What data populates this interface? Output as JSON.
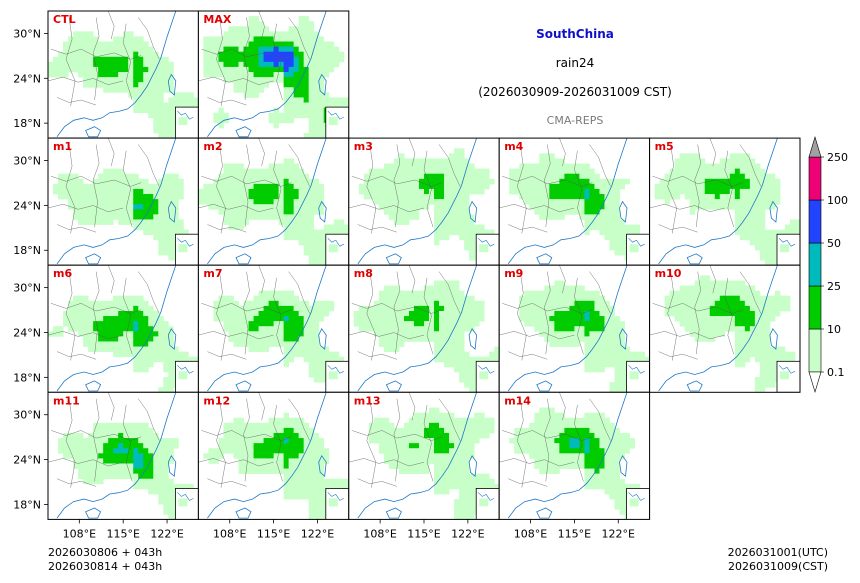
{
  "header": {
    "region": "SouthChina",
    "variable": "rain24",
    "period": "(2026030909-2026031009 CST)",
    "model": "CMA-REPS"
  },
  "panels": [
    "CTL",
    "MAX",
    "m1",
    "m2",
    "m3",
    "m4",
    "m5",
    "m6",
    "m7",
    "m8",
    "m9",
    "m10",
    "m11",
    "m12",
    "m13",
    "m14"
  ],
  "axes": {
    "lat_labels": [
      "30°N",
      "24°N",
      "18°N"
    ],
    "lon_labels": [
      "108°E",
      "115°E",
      "122°E"
    ]
  },
  "footer": {
    "init_line1": "2026030806  +  043h",
    "init_line2": "2026030814  +  043h",
    "valid_utc": "2026031001(UTC)",
    "valid_cst": "2026031009(CST)"
  },
  "chart_data": {
    "type": "heatmap",
    "title": "rain24",
    "subtitle": "(2026030909-2026031009 CST)",
    "colorbar": {
      "levels": [
        0.1,
        10,
        25,
        50,
        100,
        250
      ],
      "labels": [
        "0.1",
        "10",
        "25",
        "50",
        "100",
        "250"
      ],
      "colors": [
        "#c8ffc8",
        "#00cc00",
        "#00bbbb",
        "#2244ff",
        "#ee0077"
      ],
      "extend_min_color": "#ffffff",
      "extend_max_color": "#a0a0a0"
    },
    "lon_range": [
      103,
      127
    ],
    "lat_range": [
      16,
      33
    ]
  }
}
